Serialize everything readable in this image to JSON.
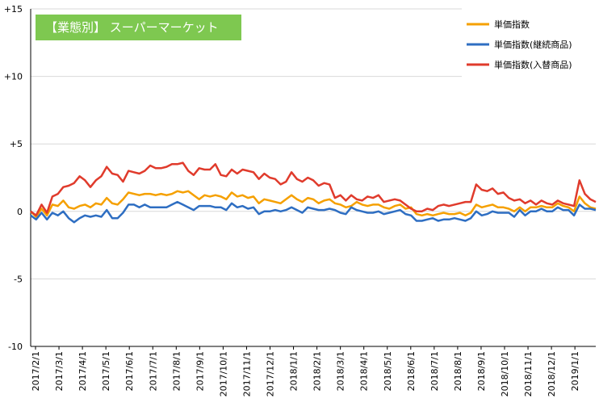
{
  "chart_data": {
    "type": "line",
    "title": "【業態別】 スーパーマーケット",
    "xlabel": "",
    "ylabel": "",
    "ylim": [
      -10,
      15
    ],
    "y_ticks": [
      15,
      10,
      5,
      0,
      -5,
      -10
    ],
    "y_tick_labels": [
      "+15",
      "+10",
      "+5",
      "0",
      "-5",
      "-10"
    ],
    "grid": "horizontal",
    "legend_position": "top-right",
    "x_tick_labels": [
      "2017/2/1",
      "2017/3/1",
      "2017/4/1",
      "2017/5/1",
      "2017/6/1",
      "2017/7/1",
      "2017/8/1",
      "2017/9/1",
      "2017/10/1",
      "2017/11/1",
      "2017/12/1",
      "2018/1/1",
      "2018/2/1",
      "2018/3/1",
      "2018/4/1",
      "2018/5/1",
      "2018/6/1",
      "2018/7/1",
      "2018/8/1",
      "2018/9/1",
      "2018/10/1",
      "2018/11/1",
      "2018/12/1",
      "2019/1/1"
    ],
    "colors": {
      "badge": "#7ec850",
      "grid": "#d9d9d9",
      "axis": "#000000"
    },
    "series": [
      {
        "name": "単価指数",
        "color": "#f5a000",
        "values": [
          0.0,
          -0.4,
          0.2,
          -0.3,
          0.5,
          0.4,
          0.8,
          0.3,
          0.2,
          0.4,
          0.5,
          0.3,
          0.6,
          0.5,
          1.0,
          0.6,
          0.5,
          0.9,
          1.4,
          1.3,
          1.2,
          1.3,
          1.3,
          1.2,
          1.3,
          1.2,
          1.3,
          1.5,
          1.4,
          1.5,
          1.2,
          0.9,
          1.2,
          1.1,
          1.2,
          1.1,
          0.9,
          1.4,
          1.1,
          1.2,
          1.0,
          1.1,
          0.6,
          0.9,
          0.8,
          0.7,
          0.6,
          0.9,
          1.2,
          0.9,
          0.7,
          1.0,
          0.9,
          0.6,
          0.8,
          0.9,
          0.6,
          0.5,
          0.3,
          0.4,
          0.7,
          0.5,
          0.4,
          0.5,
          0.5,
          0.3,
          0.2,
          0.4,
          0.5,
          0.2,
          0.3,
          -0.2,
          -0.3,
          -0.2,
          -0.3,
          -0.2,
          -0.1,
          -0.2,
          -0.2,
          -0.1,
          -0.3,
          -0.1,
          0.5,
          0.3,
          0.4,
          0.5,
          0.3,
          0.3,
          0.2,
          0.0,
          0.3,
          0.0,
          0.3,
          0.3,
          0.4,
          0.3,
          0.3,
          0.6,
          0.4,
          0.3,
          0.0,
          1.1,
          0.6,
          0.3,
          0.2
        ]
      },
      {
        "name": "単価指数(継続商品)",
        "color": "#2e6ec2",
        "values": [
          -0.3,
          -0.6,
          -0.1,
          -0.6,
          -0.1,
          -0.3,
          0.0,
          -0.5,
          -0.8,
          -0.5,
          -0.3,
          -0.4,
          -0.3,
          -0.4,
          0.1,
          -0.5,
          -0.5,
          -0.1,
          0.5,
          0.5,
          0.3,
          0.5,
          0.3,
          0.3,
          0.3,
          0.3,
          0.5,
          0.7,
          0.5,
          0.3,
          0.1,
          0.4,
          0.4,
          0.4,
          0.3,
          0.3,
          0.1,
          0.6,
          0.3,
          0.4,
          0.2,
          0.3,
          -0.2,
          0.0,
          0.0,
          0.1,
          0.0,
          0.1,
          0.3,
          0.1,
          -0.1,
          0.3,
          0.2,
          0.1,
          0.1,
          0.2,
          0.1,
          -0.1,
          -0.2,
          0.3,
          0.1,
          0.0,
          -0.1,
          -0.1,
          0.0,
          -0.2,
          -0.1,
          0.0,
          0.1,
          -0.2,
          -0.3,
          -0.7,
          -0.7,
          -0.6,
          -0.5,
          -0.7,
          -0.6,
          -0.6,
          -0.5,
          -0.6,
          -0.7,
          -0.5,
          0.0,
          -0.3,
          -0.2,
          0.0,
          -0.1,
          -0.1,
          -0.1,
          -0.4,
          0.1,
          -0.3,
          0.0,
          0.0,
          0.2,
          0.0,
          0.0,
          0.3,
          0.1,
          0.1,
          -0.3,
          0.5,
          0.2,
          0.2,
          0.1
        ]
      },
      {
        "name": "単価指数(入替商品)",
        "color": "#e03b2c",
        "values": [
          0.0,
          -0.3,
          0.5,
          -0.1,
          1.1,
          1.3,
          1.8,
          1.9,
          2.1,
          2.6,
          2.3,
          1.8,
          2.3,
          2.6,
          3.3,
          2.8,
          2.7,
          2.2,
          3.0,
          2.9,
          2.8,
          3.0,
          3.4,
          3.2,
          3.2,
          3.3,
          3.5,
          3.5,
          3.6,
          3.0,
          2.7,
          3.2,
          3.1,
          3.1,
          3.5,
          2.7,
          2.6,
          3.1,
          2.8,
          3.1,
          3.0,
          2.9,
          2.4,
          2.8,
          2.5,
          2.4,
          2.0,
          2.2,
          2.9,
          2.4,
          2.2,
          2.5,
          2.3,
          1.9,
          2.1,
          2.0,
          1.0,
          1.2,
          0.8,
          1.2,
          0.9,
          0.8,
          1.1,
          1.0,
          1.2,
          0.7,
          0.8,
          0.9,
          0.8,
          0.5,
          0.2,
          0.0,
          0.0,
          0.2,
          0.1,
          0.4,
          0.5,
          0.4,
          0.5,
          0.6,
          0.7,
          0.7,
          2.0,
          1.6,
          1.5,
          1.7,
          1.3,
          1.4,
          1.0,
          0.8,
          0.9,
          0.6,
          0.8,
          0.5,
          0.8,
          0.6,
          0.5,
          0.8,
          0.6,
          0.5,
          0.4,
          2.3,
          1.3,
          0.9,
          0.7
        ]
      }
    ]
  }
}
